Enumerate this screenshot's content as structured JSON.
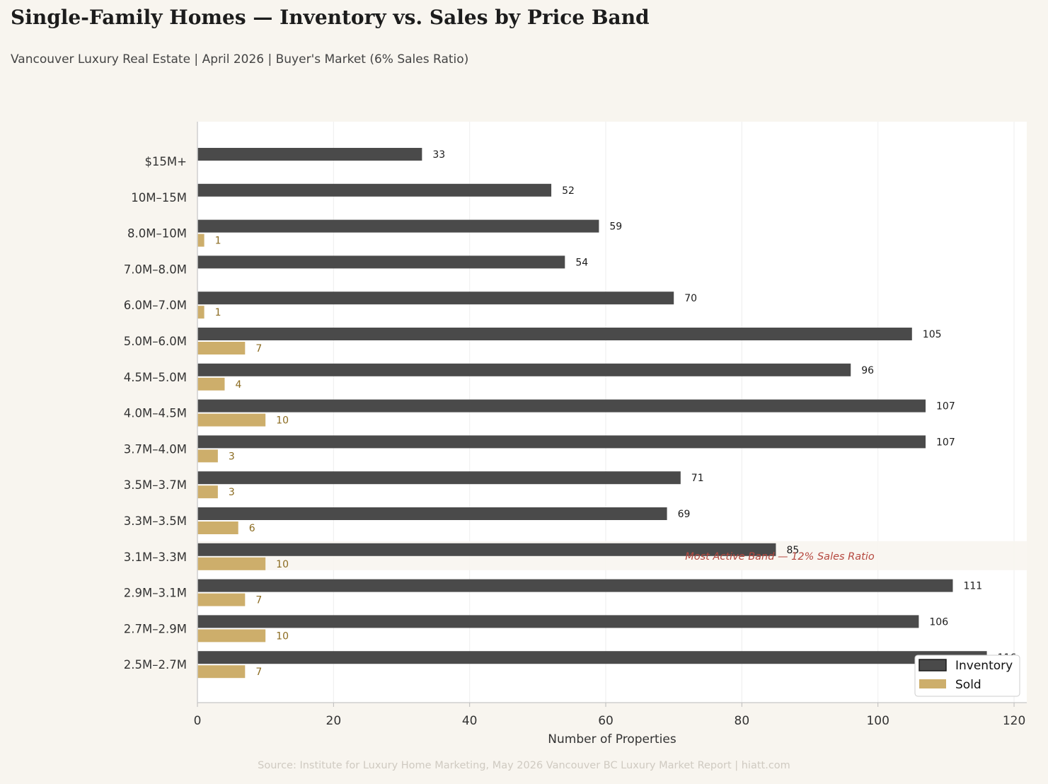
{
  "chart_data": {
    "type": "bar",
    "orientation": "horizontal",
    "title": "Single-Family Homes — Inventory vs. Sales by Price Band",
    "subtitle": "Vancouver Luxury Real Estate  |  April 2026  |  Buyer's Market (6% Sales Ratio)",
    "xlabel": "Number of Properties",
    "ylabel": "",
    "xlim": [
      0,
      122
    ],
    "xticks": [
      0,
      20,
      40,
      60,
      80,
      100,
      120
    ],
    "grid": true,
    "legend_position": "bottom-right",
    "categories": [
      "$15M+",
      "10M–15M",
      "8.0M–10M",
      "7.0M–8.0M",
      "6.0M–7.0M",
      "5.0M–6.0M",
      "4.5M–5.0M",
      "4.0M–4.5M",
      "3.7M–4.0M",
      "3.5M–3.7M",
      "3.3M–3.5M",
      "3.1M–3.3M",
      "2.9M–3.1M",
      "2.7M–2.9M",
      "2.5M–2.7M"
    ],
    "series": [
      {
        "name": "Inventory",
        "color": "#4a4a4a",
        "values": [
          33,
          52,
          59,
          54,
          70,
          105,
          96,
          107,
          107,
          71,
          69,
          85,
          111,
          106,
          116
        ]
      },
      {
        "name": "Sold",
        "color": "#cdae6b",
        "values": [
          0,
          0,
          1,
          0,
          1,
          7,
          4,
          10,
          3,
          3,
          6,
          10,
          7,
          10,
          7
        ]
      }
    ],
    "highlight": {
      "category": "3.1M–3.3M",
      "annotation": "Most Active Band — 12% Sales Ratio"
    },
    "source": "Source: Institute for Luxury Home Marketing, May 2026 Vancouver BC Luxury Market Report  |  hiatt.com"
  },
  "colors": {
    "background": "#f8f5ef",
    "plot_background": "#ffffff",
    "inventory": "#4a4a4a",
    "sold": "#cdae6b",
    "annotation": "#b5483f"
  }
}
